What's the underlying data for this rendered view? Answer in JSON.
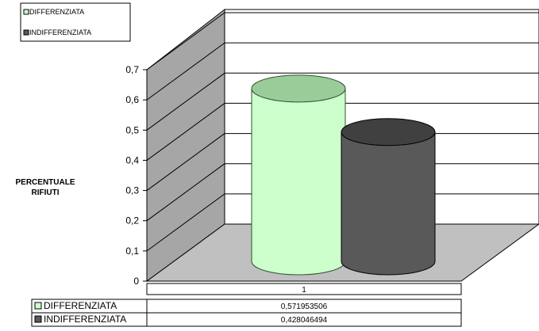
{
  "chart_data": {
    "type": "bar",
    "style": "3d-cylinder",
    "categories": [
      "1"
    ],
    "series": [
      {
        "name": "DIFFERENZIATA",
        "values": [
          0.571953506
        ],
        "color": "#ccffcc",
        "display": "0,571953506"
      },
      {
        "name": "INDIFFERENZIATA",
        "values": [
          0.428046494
        ],
        "color": "#595959",
        "display": "0,428046494"
      }
    ],
    "ylabel": "PERCENTUALE RIFIUTI",
    "ylabel_lines": [
      "PERCENTUALE",
      "RIFIUTI"
    ],
    "ylim": [
      0,
      0.7
    ],
    "yticks": [
      "0",
      "0,1",
      "0,2",
      "0,3",
      "0,4",
      "0,5",
      "0,6",
      "0,7"
    ],
    "grid": true,
    "legend_position": "top-left",
    "data_table": true,
    "colors": {
      "walls": "#a6a6a6",
      "floor": "#c0c0c0",
      "grid": "#000000"
    }
  }
}
